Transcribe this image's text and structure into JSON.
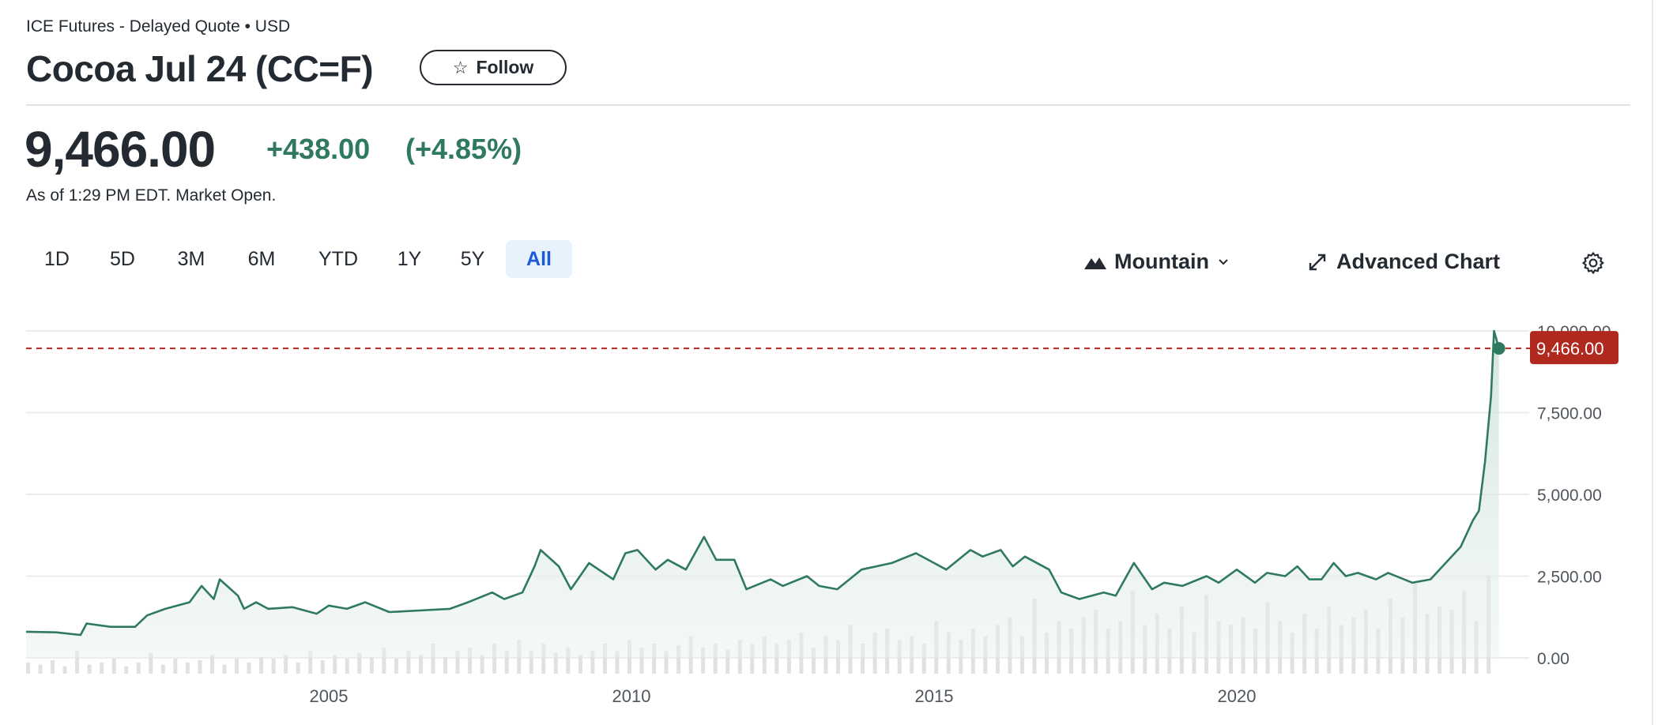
{
  "header": {
    "subtitle": "ICE Futures - Delayed Quote • USD",
    "title": "Cocoa Jul 24 (CC=F)",
    "follow_label": "Follow"
  },
  "quote": {
    "price": "9,466.00",
    "change": "+438.00",
    "change_pct": "(+4.85%)",
    "as_of": "As of 1:29 PM EDT. Market Open."
  },
  "ranges": [
    "1D",
    "5D",
    "3M",
    "6M",
    "YTD",
    "1Y",
    "5Y",
    "All"
  ],
  "active_range": "All",
  "toolbar": {
    "chart_type": "Mountain",
    "advanced_label": "Advanced Chart"
  },
  "colors": {
    "line": "#2f7a5f",
    "up": "#2f7a5f",
    "current_price": "#b0281e",
    "active_tab": "#1d5bd6"
  },
  "chart_data": {
    "type": "area",
    "title": "",
    "xlabel": "",
    "ylabel": "",
    "xlim": [
      2000.0,
      2024.33
    ],
    "ylim": [
      0,
      10000
    ],
    "x_ticks": [
      {
        "value": 2005,
        "label": "2005"
      },
      {
        "value": 2010,
        "label": "2010"
      },
      {
        "value": 2015,
        "label": "2015"
      },
      {
        "value": 2020,
        "label": "2020"
      }
    ],
    "y_ticks": [
      {
        "value": 0,
        "label": "0.00"
      },
      {
        "value": 2500,
        "label": "2,500.00"
      },
      {
        "value": 5000,
        "label": "5,000.00"
      },
      {
        "value": 7500,
        "label": "7,500.00"
      },
      {
        "value": 10000,
        "label": "10,000.00"
      }
    ],
    "current_price": {
      "value": 9466,
      "label": "9,466.00"
    },
    "grid": true,
    "series": [
      {
        "name": "CC=F",
        "x": [
          2000.0,
          2000.5,
          2000.9,
          2001.0,
          2001.4,
          2001.8,
          2002.0,
          2002.3,
          2002.7,
          2002.9,
          2003.1,
          2003.2,
          2003.5,
          2003.6,
          2003.8,
          2004.0,
          2004.4,
          2004.8,
          2005.0,
          2005.3,
          2005.6,
          2006.0,
          2006.5,
          2007.0,
          2007.3,
          2007.7,
          2007.9,
          2008.2,
          2008.4,
          2008.5,
          2008.8,
          2009.0,
          2009.3,
          2009.7,
          2009.9,
          2010.1,
          2010.4,
          2010.6,
          2010.9,
          2011.2,
          2011.4,
          2011.7,
          2011.9,
          2012.3,
          2012.5,
          2012.9,
          2013.1,
          2013.4,
          2013.8,
          2014.3,
          2014.7,
          2015.0,
          2015.2,
          2015.6,
          2015.8,
          2016.1,
          2016.3,
          2016.5,
          2016.9,
          2017.1,
          2017.4,
          2017.8,
          2018.0,
          2018.3,
          2018.6,
          2018.8,
          2019.1,
          2019.5,
          2019.7,
          2020.0,
          2020.3,
          2020.5,
          2020.8,
          2021.0,
          2021.2,
          2021.4,
          2021.6,
          2021.8,
          2022.0,
          2022.3,
          2022.5,
          2022.9,
          2023.2,
          2023.5,
          2023.7,
          2023.9,
          2024.0,
          2024.1,
          2024.2,
          2024.25,
          2024.33
        ],
        "y": [
          800,
          780,
          700,
          1050,
          950,
          950,
          1300,
          1500,
          1700,
          2200,
          1800,
          2400,
          1900,
          1500,
          1700,
          1500,
          1550,
          1350,
          1600,
          1500,
          1700,
          1400,
          1450,
          1500,
          1700,
          2000,
          1800,
          2000,
          2800,
          3300,
          2800,
          2100,
          2900,
          2400,
          3200,
          3300,
          2700,
          3000,
          2700,
          3700,
          3000,
          3000,
          2100,
          2400,
          2200,
          2500,
          2200,
          2100,
          2700,
          2900,
          3200,
          2900,
          2700,
          3300,
          3100,
          3300,
          2800,
          3100,
          2700,
          2000,
          1800,
          2000,
          1900,
          2900,
          2100,
          2300,
          2200,
          2500,
          2300,
          2700,
          2300,
          2600,
          2500,
          2800,
          2400,
          2400,
          2900,
          2500,
          2600,
          2400,
          2600,
          2300,
          2400,
          3000,
          3400,
          4200,
          4500,
          6000,
          8000,
          10000,
          9466
        ]
      }
    ],
    "volume_relative": [
      0.15,
      0.12,
      0.18,
      0.1,
      0.3,
      0.12,
      0.15,
      0.2,
      0.1,
      0.15,
      0.28,
      0.12,
      0.2,
      0.15,
      0.18,
      0.25,
      0.12,
      0.2,
      0.15,
      0.22,
      0.2,
      0.25,
      0.15,
      0.3,
      0.18,
      0.25,
      0.2,
      0.28,
      0.22,
      0.35,
      0.2,
      0.3,
      0.25,
      0.4,
      0.22,
      0.3,
      0.35,
      0.25,
      0.4,
      0.3,
      0.45,
      0.3,
      0.4,
      0.28,
      0.35,
      0.25,
      0.3,
      0.4,
      0.3,
      0.45,
      0.35,
      0.4,
      0.3,
      0.38,
      0.5,
      0.35,
      0.4,
      0.32,
      0.45,
      0.4,
      0.5,
      0.4,
      0.45,
      0.55,
      0.35,
      0.5,
      0.45,
      0.65,
      0.4,
      0.55,
      0.6,
      0.45,
      0.5,
      0.4,
      0.7,
      0.55,
      0.45,
      0.6,
      0.5,
      0.65,
      0.75,
      0.5,
      1.0,
      0.55,
      0.7,
      0.6,
      0.75,
      0.85,
      0.6,
      0.7,
      1.1,
      0.65,
      0.8,
      0.6,
      0.9,
      0.55,
      1.05,
      0.7,
      0.65,
      0.75,
      0.6,
      0.95,
      0.7,
      0.55,
      0.8,
      0.6,
      0.9,
      0.65,
      0.75,
      0.85,
      0.6,
      1.0,
      0.75,
      1.2,
      0.8,
      0.9,
      0.85,
      1.1,
      0.7,
      1.3
    ]
  }
}
